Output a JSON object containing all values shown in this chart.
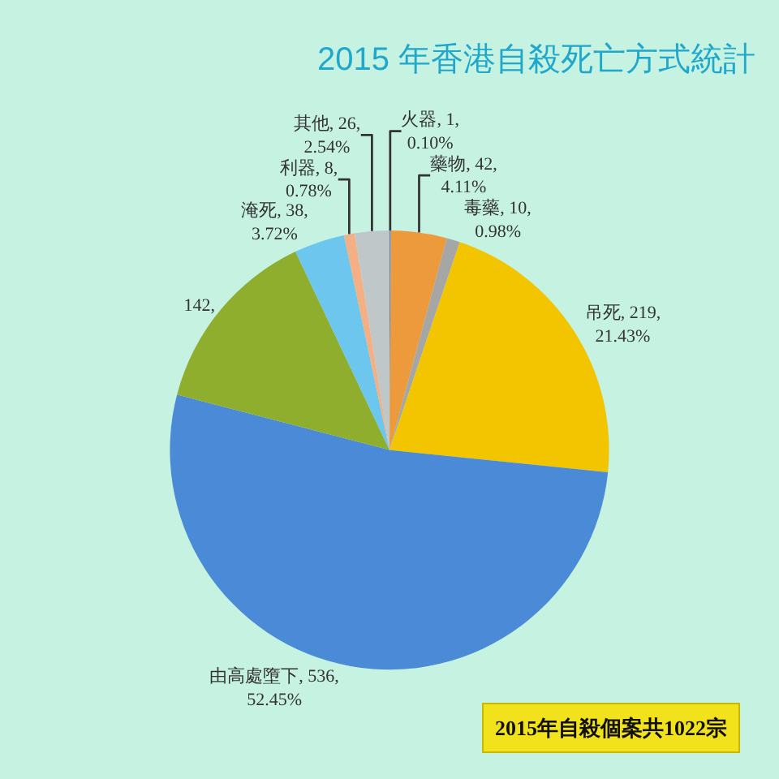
{
  "chart_data": {
    "type": "pie",
    "title": "2015 年香港自殺死亡方式統計",
    "categories": [
      "火器",
      "藥物",
      "毒藥",
      "吊死",
      "由高處墮下",
      null,
      "淹死",
      "利器",
      "其他"
    ],
    "values": [
      1,
      42,
      10,
      219,
      536,
      142,
      38,
      8,
      26
    ],
    "colors": [
      "#5b7fbf",
      "#ec9a3c",
      "#a6a6a6",
      "#f2c500",
      "#4a8ad6",
      "#8fae2e",
      "#6cc6ee",
      "#f4b084",
      "#bfc7c9"
    ],
    "value_labels": [
      "1, 0.10%",
      "42, 4.11%",
      "10, 0.98%",
      "219, 21.43%",
      "536, 52.45%",
      "142,",
      "38, 3.72%",
      "8, 0.78%",
      "26, 2.54%"
    ],
    "annotations": [
      "2015年自殺個案共1022宗"
    ]
  }
}
